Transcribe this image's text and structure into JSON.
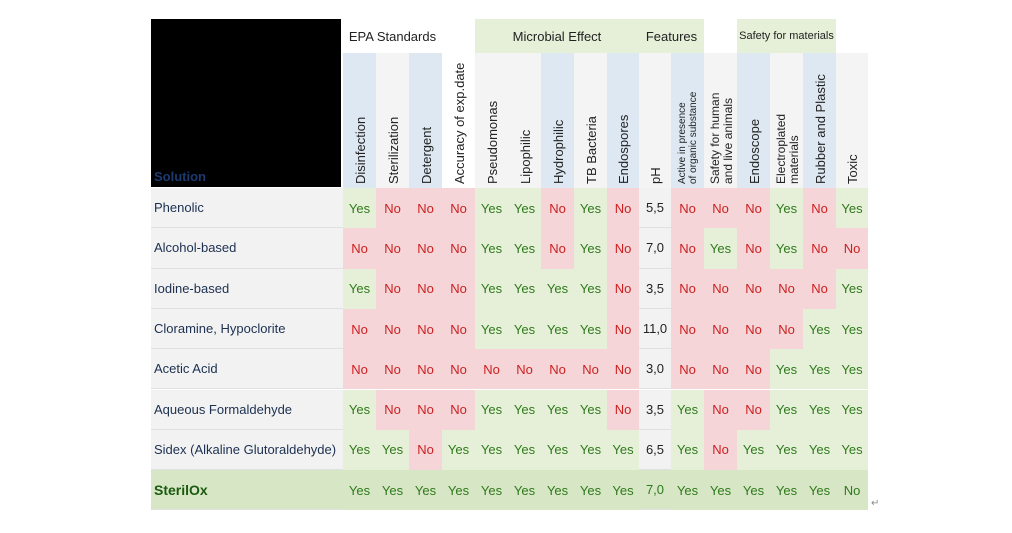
{
  "colors": {
    "yes_bg": "#e6f0d8",
    "yes_text": "#2f7a1c",
    "no_bg": "#f5d5d8",
    "no_text": "#cc2020",
    "neutral_bg": "#f2f2f2",
    "header_blue": "#dde8f2",
    "group_green": "#e6f0d8",
    "highlight_row": "#d7e6c5"
  },
  "table": {
    "corner_label": "Solution",
    "groups": [
      {
        "label": "EPA Standards",
        "span": 3
      },
      {
        "label": "",
        "span": 1
      },
      {
        "label": "Microbial Effect",
        "span": 5
      },
      {
        "label": "Features",
        "span": 2
      },
      {
        "label": "",
        "span": 1
      },
      {
        "label": "Safety for materials",
        "span": 3
      },
      {
        "label": "",
        "span": 1
      }
    ],
    "columns": [
      [
        "Disinfection"
      ],
      [
        "Sterilization"
      ],
      [
        "Detergent"
      ],
      [
        "Accuracy of exp.date"
      ],
      [
        "Pseudomonas"
      ],
      [
        "Lipophilic"
      ],
      [
        "Hydrophilic"
      ],
      [
        "TB Bacteria"
      ],
      [
        "Endospores"
      ],
      [
        "pH"
      ],
      [
        "Active in presence",
        "of organic substance"
      ],
      [
        "Safety for human",
        "and live animals"
      ],
      [
        "Endoscope"
      ],
      [
        "Electroplated",
        "materials"
      ],
      [
        "Rubber and Plastic"
      ],
      [
        "Toxic"
      ]
    ],
    "rows": [
      {
        "name": "Phenolic",
        "values": [
          "Yes",
          "No",
          "No",
          "No",
          "Yes",
          "Yes",
          "No",
          "Yes",
          "No",
          "5,5",
          "No",
          "No",
          "No",
          "Yes",
          "No",
          "Yes"
        ]
      },
      {
        "name": "Alcohol-based",
        "values": [
          "No",
          "No",
          "No",
          "No",
          "Yes",
          "Yes",
          "No",
          "Yes",
          "No",
          "7,0",
          "No",
          "Yes",
          "No",
          "Yes",
          "No",
          "No"
        ]
      },
      {
        "name": "Iodine-based",
        "values": [
          "Yes",
          "No",
          "No",
          "No",
          "Yes",
          "Yes",
          "Yes",
          "Yes",
          "No",
          "3,5",
          "No",
          "No",
          "No",
          "No",
          "No",
          "Yes"
        ]
      },
      {
        "name": "Cloramine, Hypoclorite",
        "values": [
          "No",
          "No",
          "No",
          "No",
          "Yes",
          "Yes",
          "Yes",
          "Yes",
          "No",
          "11,0",
          "No",
          "No",
          "No",
          "No",
          "Yes",
          "Yes"
        ]
      },
      {
        "name": "Acetic Acid",
        "values": [
          "No",
          "No",
          "No",
          "No",
          "No",
          "No",
          "No",
          "No",
          "No",
          "3,0",
          "No",
          "No",
          "No",
          "Yes",
          "Yes",
          "Yes"
        ]
      },
      {
        "name": "Aqueous Formaldehyde",
        "values": [
          "Yes",
          "No",
          "No",
          "No",
          "Yes",
          "Yes",
          "Yes",
          "Yes",
          "No",
          "3,5",
          "Yes",
          "No",
          "No",
          "Yes",
          "Yes",
          "Yes"
        ]
      },
      {
        "name": "Sidex (Alkaline Glutoraldehyde)",
        "values": [
          "Yes",
          "Yes",
          "No",
          "Yes",
          "Yes",
          "Yes",
          "Yes",
          "Yes",
          "Yes",
          "6,5",
          "Yes",
          "No",
          "Yes",
          "Yes",
          "Yes",
          "Yes"
        ]
      },
      {
        "name": "SterilOx",
        "highlight": true,
        "values": [
          "Yes",
          "Yes",
          "Yes",
          "Yes",
          "Yes",
          "Yes",
          "Yes",
          "Yes",
          "Yes",
          "7,0",
          "Yes",
          "Yes",
          "Yes",
          "Yes",
          "Yes",
          "No"
        ]
      }
    ]
  },
  "return_mark": "↵"
}
